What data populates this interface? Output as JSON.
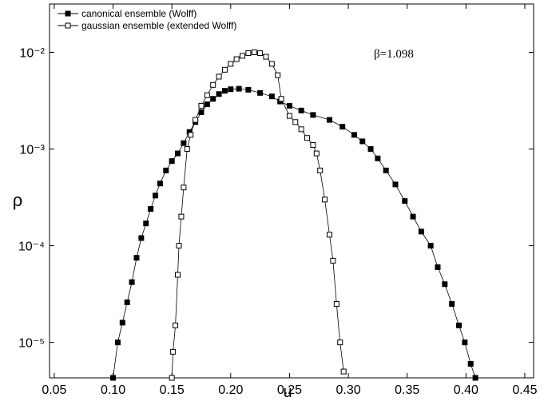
{
  "chart_data": {
    "type": "line",
    "xlabel": "u",
    "ylabel": "ρ",
    "annotation": "β=1.098",
    "log_y": true,
    "legend": "upper left",
    "xlim": [
      0.046,
      0.4575
    ],
    "ylim": [
      4.3e-06,
      0.0316
    ],
    "xticks": [
      {
        "value": 0.05,
        "label": "0.05"
      },
      {
        "value": 0.1,
        "label": "0.10"
      },
      {
        "value": 0.15,
        "label": "0.15"
      },
      {
        "value": 0.2,
        "label": "0.20"
      },
      {
        "value": 0.25,
        "label": "0.25"
      },
      {
        "value": 0.3,
        "label": "0.30"
      },
      {
        "value": 0.35,
        "label": "0.35"
      },
      {
        "value": 0.4,
        "label": "0.40"
      },
      {
        "value": 0.45,
        "label": "0.45"
      }
    ],
    "yticks": [
      {
        "value": 1e-05,
        "label": "10⁻⁵"
      },
      {
        "value": 0.0001,
        "label": "10⁻⁴"
      },
      {
        "value": 0.001,
        "label": "10⁻³"
      },
      {
        "value": 0.01,
        "label": "10⁻²"
      }
    ],
    "series": [
      {
        "name": "canonical ensemble (Wolff)",
        "color": "#000000",
        "marker": "filled-square",
        "x": [
          0.1,
          0.104,
          0.108,
          0.112,
          0.116,
          0.12,
          0.124,
          0.128,
          0.132,
          0.136,
          0.14,
          0.145,
          0.15,
          0.155,
          0.16,
          0.165,
          0.17,
          0.175,
          0.18,
          0.185,
          0.19,
          0.195,
          0.2,
          0.207,
          0.215,
          0.225,
          0.235,
          0.242,
          0.25,
          0.26,
          0.27,
          0.284,
          0.295,
          0.305,
          0.312,
          0.319,
          0.325,
          0.332,
          0.34,
          0.348,
          0.355,
          0.362,
          0.37,
          0.376,
          0.382,
          0.388,
          0.394,
          0.399,
          0.404,
          0.408
        ],
        "values": [
          4.3e-06,
          1e-05,
          1.6e-05,
          2.6e-05,
          4.2e-05,
          7.5e-05,
          0.00012,
          0.00017,
          0.00024,
          0.00033,
          0.00044,
          0.0006,
          0.00075,
          0.0009,
          0.00115,
          0.0015,
          0.0019,
          0.0024,
          0.0029,
          0.0033,
          0.0037,
          0.004,
          0.00415,
          0.0042,
          0.0041,
          0.0038,
          0.0035,
          0.0031,
          0.0028,
          0.0025,
          0.00225,
          0.002,
          0.0017,
          0.0014,
          0.0012,
          0.001,
          0.0008,
          0.0006,
          0.00043,
          0.00029,
          0.0002,
          0.00014,
          0.0001,
          6e-05,
          4e-05,
          2.5e-05,
          1.5e-05,
          1e-05,
          6e-06,
          4.3e-06
        ]
      },
      {
        "name": "gaussian ensemble (extended Wolff)",
        "color": "#000000",
        "marker": "open-square",
        "x": [
          0.15,
          0.151,
          0.153,
          0.155,
          0.156,
          0.158,
          0.16,
          0.163,
          0.166,
          0.17,
          0.175,
          0.18,
          0.185,
          0.19,
          0.195,
          0.2,
          0.205,
          0.21,
          0.215,
          0.22,
          0.225,
          0.23,
          0.235,
          0.24,
          0.243,
          0.25,
          0.255,
          0.26,
          0.265,
          0.27,
          0.273,
          0.276,
          0.28,
          0.284,
          0.287,
          0.29,
          0.293,
          0.296
        ],
        "values": [
          4.3e-06,
          8e-06,
          1.5e-05,
          5e-05,
          0.0001,
          0.0002,
          0.0004,
          0.001,
          0.0014,
          0.002,
          0.0028,
          0.0036,
          0.0046,
          0.0056,
          0.0066,
          0.0076,
          0.0085,
          0.0092,
          0.0098,
          0.01,
          0.0098,
          0.009,
          0.0076,
          0.0058,
          0.0033,
          0.0022,
          0.0019,
          0.0016,
          0.0013,
          0.0011,
          0.0009,
          0.0006,
          0.0003,
          0.00013,
          7e-05,
          2.5e-05,
          1e-05,
          5e-06
        ]
      }
    ]
  }
}
